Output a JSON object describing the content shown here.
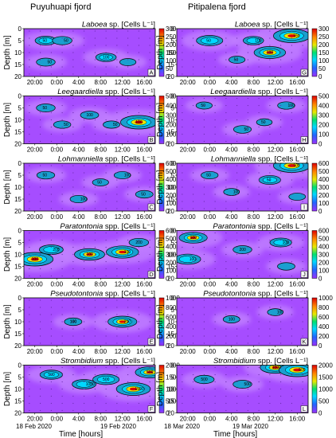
{
  "header": {
    "left_title": "Puyuhuapi fjord",
    "right_title": "Pitipalena fjord"
  },
  "axes": {
    "ylabel": "Depth [m]",
    "xlabel": "Time [hours]",
    "y_ticks": [
      "0",
      "5",
      "10",
      "15",
      "20"
    ],
    "x_ticks": [
      "20:00",
      "0:00",
      "4:00",
      "8:00",
      "12:00",
      "16:00"
    ],
    "left_dates": [
      "18 Feb 2020",
      "19 Feb 2020"
    ],
    "right_dates": [
      "18 Mar 2020",
      "19 Mar 2020"
    ]
  },
  "colors": {
    "background": "#a64dff",
    "low": "#c080ff",
    "mid": "#1a9fd0",
    "contour": "#000000",
    "colorbar": [
      "#9b30ff",
      "#2266ff",
      "#00d8ff",
      "#00e070",
      "#e8e800",
      "#ff8800",
      "#e00000"
    ]
  },
  "chart_data": [
    {
      "type": "heatmap",
      "fjord": "Puyuhuapi",
      "panel": "A",
      "taxon": "Laboea",
      "suffix": "sp. [Cells L⁻¹]",
      "cb_ticks": [
        "300",
        "250",
        "200",
        "150",
        "100",
        "50",
        "0"
      ],
      "contour_labels": [
        "50",
        "50",
        "100",
        "50"
      ],
      "hotspots": [
        {
          "t": 2,
          "d": 5,
          "v": 120
        },
        {
          "t": 5,
          "d": 5,
          "v": 100
        },
        {
          "t": 13,
          "d": 12,
          "v": 110
        },
        {
          "t": 2,
          "d": 14,
          "v": 90
        },
        {
          "t": 17,
          "d": 14,
          "v": 60
        }
      ]
    },
    {
      "type": "heatmap",
      "fjord": "Pitipalena",
      "panel": "G",
      "taxon": "Laboea",
      "suffix": "sp. [Cells L⁻¹]",
      "cb_ticks": [
        "300",
        "250",
        "200",
        "150",
        "100",
        "50",
        "0"
      ],
      "contour_labels": [
        "50",
        "100",
        "100",
        "150",
        "50"
      ],
      "hotspots": [
        {
          "t": 4,
          "d": 5,
          "v": 180
        },
        {
          "t": 12,
          "d": 5,
          "v": 110
        },
        {
          "t": 15,
          "d": 10,
          "v": 240
        },
        {
          "t": 19,
          "d": 3,
          "v": 300
        },
        {
          "t": 9,
          "d": 13,
          "v": 60
        }
      ]
    },
    {
      "type": "heatmap",
      "fjord": "Puyuhuapi",
      "panel": "B",
      "taxon": "Leegaardiella",
      "suffix": "spp. [Cells L⁻¹]",
      "cb_ticks": [
        "500",
        "400",
        "300",
        "200",
        "100",
        "0"
      ],
      "contour_labels": [
        "50",
        "50",
        "100",
        "50",
        "100"
      ],
      "hotspots": [
        {
          "t": 2,
          "d": 5,
          "v": 150
        },
        {
          "t": 5,
          "d": 12,
          "v": 120
        },
        {
          "t": 10,
          "d": 8,
          "v": 140
        },
        {
          "t": 14,
          "d": 12,
          "v": 110
        },
        {
          "t": 19,
          "d": 11,
          "v": 500
        }
      ]
    },
    {
      "type": "heatmap",
      "fjord": "Pitipalena",
      "panel": "H",
      "taxon": "Leegaardiella",
      "suffix": "spp. [Cells L⁻¹]",
      "cb_ticks": [
        "500",
        "400",
        "300",
        "200",
        "100",
        "0"
      ],
      "contour_labels": [
        "50",
        "50",
        "50",
        "100"
      ],
      "hotspots": [
        {
          "t": 3,
          "d": 4,
          "v": 100
        },
        {
          "t": 10,
          "d": 14,
          "v": 130
        },
        {
          "t": 14,
          "d": 11,
          "v": 90
        },
        {
          "t": 18,
          "d": 4,
          "v": 120
        }
      ]
    },
    {
      "type": "heatmap",
      "fjord": "Puyuhuapi",
      "panel": "C",
      "taxon": "Lohmanniella",
      "suffix": "spp. [Cells L⁻¹]",
      "cb_ticks": [
        "600",
        "500",
        "400",
        "300",
        "200",
        "100",
        "0"
      ],
      "contour_labels": [
        "50",
        "100",
        "50",
        "100",
        "50"
      ],
      "hotspots": [
        {
          "t": 2,
          "d": 5,
          "v": 160
        },
        {
          "t": 8,
          "d": 15,
          "v": 140
        },
        {
          "t": 12,
          "d": 8,
          "v": 120
        },
        {
          "t": 16,
          "d": 5,
          "v": 130
        },
        {
          "t": 20,
          "d": 13,
          "v": 150
        }
      ]
    },
    {
      "type": "heatmap",
      "fjord": "Pitipalena",
      "panel": "I",
      "taxon": "Lohmanniella",
      "suffix": "spp. [Cells L⁻¹]",
      "cb_ticks": [
        "600",
        "500",
        "400",
        "300",
        "200",
        "100",
        "0"
      ],
      "contour_labels": [
        "50",
        "100",
        "50",
        "100"
      ],
      "hotspots": [
        {
          "t": 4,
          "d": 5,
          "v": 140
        },
        {
          "t": 8,
          "d": 12,
          "v": 110
        },
        {
          "t": 15,
          "d": 7,
          "v": 250
        },
        {
          "t": 19,
          "d": 1,
          "v": 600
        },
        {
          "t": 20,
          "d": 14,
          "v": 130
        }
      ]
    },
    {
      "type": "heatmap",
      "fjord": "Puyuhuapi",
      "panel": "D",
      "taxon": "Paratontonia",
      "suffix": "spp. [Cells L⁻¹]",
      "cb_ticks": [
        "600",
        "500",
        "400",
        "300",
        "200",
        "100",
        "0"
      ],
      "contour_labels": [
        "100",
        "200",
        "100",
        "100",
        "200"
      ],
      "hotspots": [
        {
          "t": 0,
          "d": 12,
          "v": 600
        },
        {
          "t": 3,
          "d": 8,
          "v": 300
        },
        {
          "t": 10,
          "d": 10,
          "v": 450
        },
        {
          "t": 16,
          "d": 9,
          "v": 500
        },
        {
          "t": 19,
          "d": 5,
          "v": 200
        }
      ]
    },
    {
      "type": "heatmap",
      "fjord": "Pitipalena",
      "panel": "J",
      "taxon": "Paratontonia",
      "suffix": "spp. [Cells L⁻¹]",
      "cb_ticks": [
        "600",
        "500",
        "400",
        "300",
        "200",
        "100",
        "0"
      ],
      "contour_labels": [
        "100",
        "100",
        "200",
        "100"
      ],
      "hotspots": [
        {
          "t": 1,
          "d": 3,
          "v": 400
        },
        {
          "t": 0,
          "d": 12,
          "v": 350
        },
        {
          "t": 10,
          "d": 8,
          "v": 180
        },
        {
          "t": 17,
          "d": 5,
          "v": 250
        },
        {
          "t": 18,
          "d": 15,
          "v": 150
        }
      ]
    },
    {
      "type": "heatmap",
      "fjord": "Puyuhuapi",
      "panel": "E",
      "taxon": "Pseudotontonia",
      "suffix": "spp. [Cells L⁻¹]",
      "cb_ticks": [
        "1000",
        "800",
        "600",
        "400",
        "200",
        "0"
      ],
      "contour_labels": [
        "100",
        "200",
        "100"
      ],
      "hotspots": [
        {
          "t": 7,
          "d": 10,
          "v": 250
        },
        {
          "t": 16,
          "d": 10,
          "v": 700
        }
      ]
    },
    {
      "type": "heatmap",
      "fjord": "Pitipalena",
      "panel": "K",
      "taxon": "Pseudotontonia",
      "suffix": "spp. [Cells L⁻¹]",
      "cb_ticks": [
        "1000",
        "800",
        "600",
        "400",
        "200",
        "0"
      ],
      "contour_labels": [
        "100",
        "100"
      ],
      "hotspots": [
        {
          "t": 8,
          "d": 9,
          "v": 220
        },
        {
          "t": 16,
          "d": 6,
          "v": 180
        }
      ]
    },
    {
      "type": "heatmap",
      "fjord": "Puyuhuapi",
      "panel": "F",
      "taxon": "Strombidium",
      "suffix": "spp. [Cells L⁻¹]",
      "cb_ticks": [
        "2000",
        "1500",
        "1000",
        "500",
        "0"
      ],
      "contour_labels": [
        "500",
        "1000",
        "500",
        "1500",
        "500"
      ],
      "hotspots": [
        {
          "t": 3,
          "d": 4,
          "v": 900
        },
        {
          "t": 9,
          "d": 8,
          "v": 1000
        },
        {
          "t": 13,
          "d": 6,
          "v": 1200
        },
        {
          "t": 18,
          "d": 10,
          "v": 1800
        },
        {
          "t": 21,
          "d": 3,
          "v": 1400
        }
      ]
    },
    {
      "type": "heatmap",
      "fjord": "Pitipalena",
      "panel": "L",
      "taxon": "Strombidium",
      "suffix": "spp. [Cells L⁻¹]",
      "cb_ticks": [
        "2000",
        "1500",
        "1000",
        "500",
        "0"
      ],
      "contour_labels": [
        "500",
        "500",
        "1000",
        "500"
      ],
      "hotspots": [
        {
          "t": 3,
          "d": 6,
          "v": 700
        },
        {
          "t": 10,
          "d": 8,
          "v": 600
        },
        {
          "t": 16,
          "d": 1,
          "v": 1500
        },
        {
          "t": 20,
          "d": 2,
          "v": 2000
        }
      ]
    }
  ]
}
